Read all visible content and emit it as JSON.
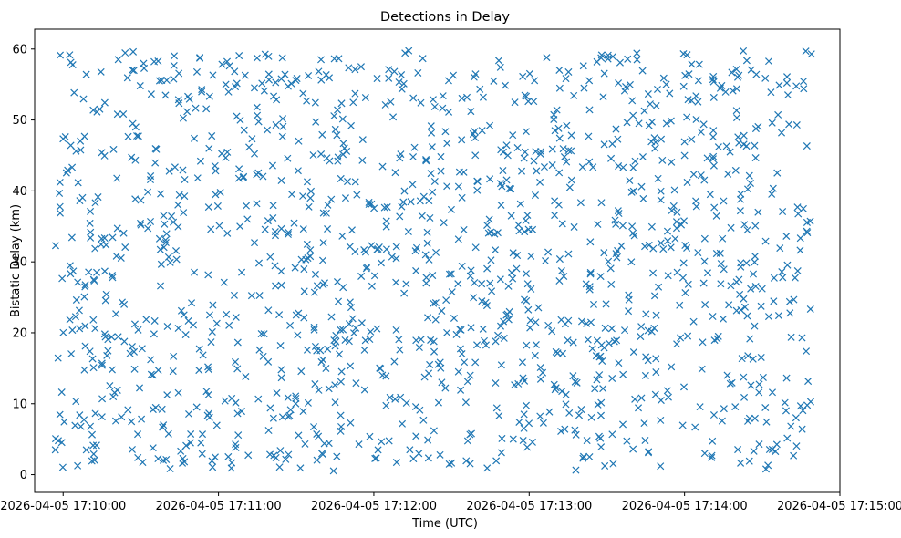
{
  "chart_data": {
    "type": "scatter",
    "title": "Detections in Delay",
    "xlabel": "Time (UTC)",
    "ylabel": "Bistatic Delay (km)",
    "marker": "x",
    "color": "#1f77b4",
    "grid": false,
    "legend": "none",
    "xlim": [
      "2026-04-05 17:09:49",
      "2026-04-05 17:15:00"
    ],
    "ylim": [
      -2.5,
      62.8
    ],
    "x_ticks": [
      "2026-04-05 17:10:00",
      "2026-04-05 17:11:00",
      "2026-04-05 17:12:00",
      "2026-04-05 17:13:00",
      "2026-04-05 17:14:00",
      "2026-04-05 17:15:00"
    ],
    "y_ticks": [
      0,
      10,
      20,
      30,
      40,
      50,
      60
    ],
    "x_range": [
      "2026-04-05 17:09:57",
      "2026-04-05 17:14:49"
    ],
    "y_range": [
      0.5,
      60
    ],
    "approx_point_count": 1400,
    "x_sample": [
      "2026-04-05 17:09:57",
      "2026-04-05 17:10:40",
      "2026-04-05 17:11:30",
      "2026-04-05 17:12:20",
      "2026-04-05 17:13:10",
      "2026-04-05 17:14:00",
      "2026-04-05 17:14:49"
    ],
    "y_sample": [
      3.5,
      55.6,
      22.5,
      31.0,
      12.0,
      45.0,
      59.3
    ]
  }
}
